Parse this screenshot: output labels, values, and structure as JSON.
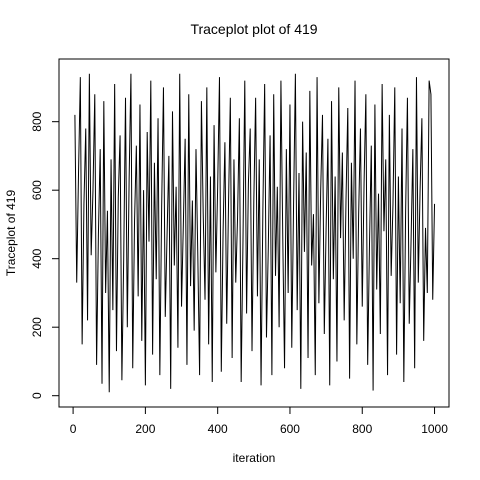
{
  "chart_data": {
    "type": "line",
    "title": "Traceplot plot of 419",
    "xlabel": "iteration",
    "ylabel": "Traceplot of 419",
    "color": "#000000",
    "x": [
      5,
      10,
      15,
      20,
      25,
      30,
      35,
      40,
      45,
      50,
      55,
      60,
      65,
      70,
      75,
      80,
      85,
      90,
      95,
      100,
      105,
      110,
      115,
      120,
      125,
      130,
      135,
      140,
      145,
      150,
      155,
      160,
      165,
      170,
      175,
      180,
      185,
      190,
      195,
      200,
      205,
      210,
      215,
      220,
      225,
      230,
      235,
      240,
      245,
      250,
      255,
      260,
      265,
      270,
      275,
      280,
      285,
      290,
      295,
      300,
      305,
      310,
      315,
      320,
      325,
      330,
      335,
      340,
      345,
      350,
      355,
      360,
      365,
      370,
      375,
      380,
      385,
      390,
      395,
      400,
      405,
      410,
      415,
      420,
      425,
      430,
      435,
      440,
      445,
      450,
      455,
      460,
      465,
      470,
      475,
      480,
      485,
      490,
      495,
      500,
      505,
      510,
      515,
      520,
      525,
      530,
      535,
      540,
      545,
      550,
      555,
      560,
      565,
      570,
      575,
      580,
      585,
      590,
      595,
      600,
      605,
      610,
      615,
      620,
      625,
      630,
      635,
      640,
      645,
      650,
      655,
      660,
      665,
      670,
      675,
      680,
      685,
      690,
      695,
      700,
      705,
      710,
      715,
      720,
      725,
      730,
      735,
      740,
      745,
      750,
      755,
      760,
      765,
      770,
      775,
      780,
      785,
      790,
      795,
      800,
      805,
      810,
      815,
      820,
      825,
      830,
      835,
      840,
      845,
      850,
      855,
      860,
      865,
      870,
      875,
      880,
      885,
      890,
      895,
      900,
      905,
      910,
      915,
      920,
      925,
      930,
      935,
      940,
      945,
      950,
      955,
      960,
      965,
      970,
      975,
      980,
      985,
      990,
      995,
      1000
    ],
    "values": [
      820,
      330,
      650,
      930,
      150,
      560,
      780,
      220,
      940,
      410,
      600,
      880,
      90,
      470,
      720,
      35,
      860,
      300,
      540,
      10,
      690,
      250,
      910,
      130,
      580,
      760,
      45,
      400,
      870,
      200,
      630,
      940,
      80,
      510,
      730,
      290,
      850,
      160,
      600,
      30,
      770,
      450,
      920,
      120,
      680,
      340,
      810,
      60,
      550,
      900,
      230,
      470,
      700,
      20,
      830,
      380,
      610,
      140,
      940,
      260,
      500,
      750,
      90,
      880,
      320,
      570,
      190,
      720,
      410,
      60,
      860,
      530,
      280,
      900,
      150,
      640,
      40,
      790,
      360,
      610,
      930,
      70,
      480,
      740,
      210,
      560,
      870,
      110,
      690,
      330,
      520,
      810,
      40,
      450,
      920,
      240,
      620,
      780,
      130,
      570,
      870,
      290,
      690,
      30,
      540,
      910,
      170,
      430,
      760,
      60,
      880,
      350,
      610,
      200,
      920,
      470,
      80,
      720,
      300,
      850,
      140,
      560,
      940,
      250,
      650,
      20,
      800,
      420,
      710,
      110,
      890,
      380,
      530,
      60,
      930,
      270,
      600,
      820,
      180,
      490,
      750,
      30,
      860,
      340,
      640,
      100,
      900,
      460,
      710,
      220,
      570,
      840,
      50,
      680,
      400,
      920,
      150,
      530,
      780,
      260,
      620,
      880,
      90,
      440,
      730,
      15,
      850,
      310,
      590,
      180,
      910,
      480,
      690,
      60,
      820,
      350,
      560,
      900,
      120,
      640,
      270,
      780,
      40,
      540,
      870,
      210,
      450,
      720,
      80,
      930,
      330,
      600,
      810,
      160,
      490,
      300,
      920,
      880,
      280,
      560
    ],
    "xlim": [
      -39,
      1040
    ],
    "ylim": [
      -33,
      983
    ],
    "xticks": [
      0,
      200,
      400,
      600,
      800,
      1000
    ],
    "yticks": [
      0,
      200,
      400,
      600,
      800
    ]
  }
}
